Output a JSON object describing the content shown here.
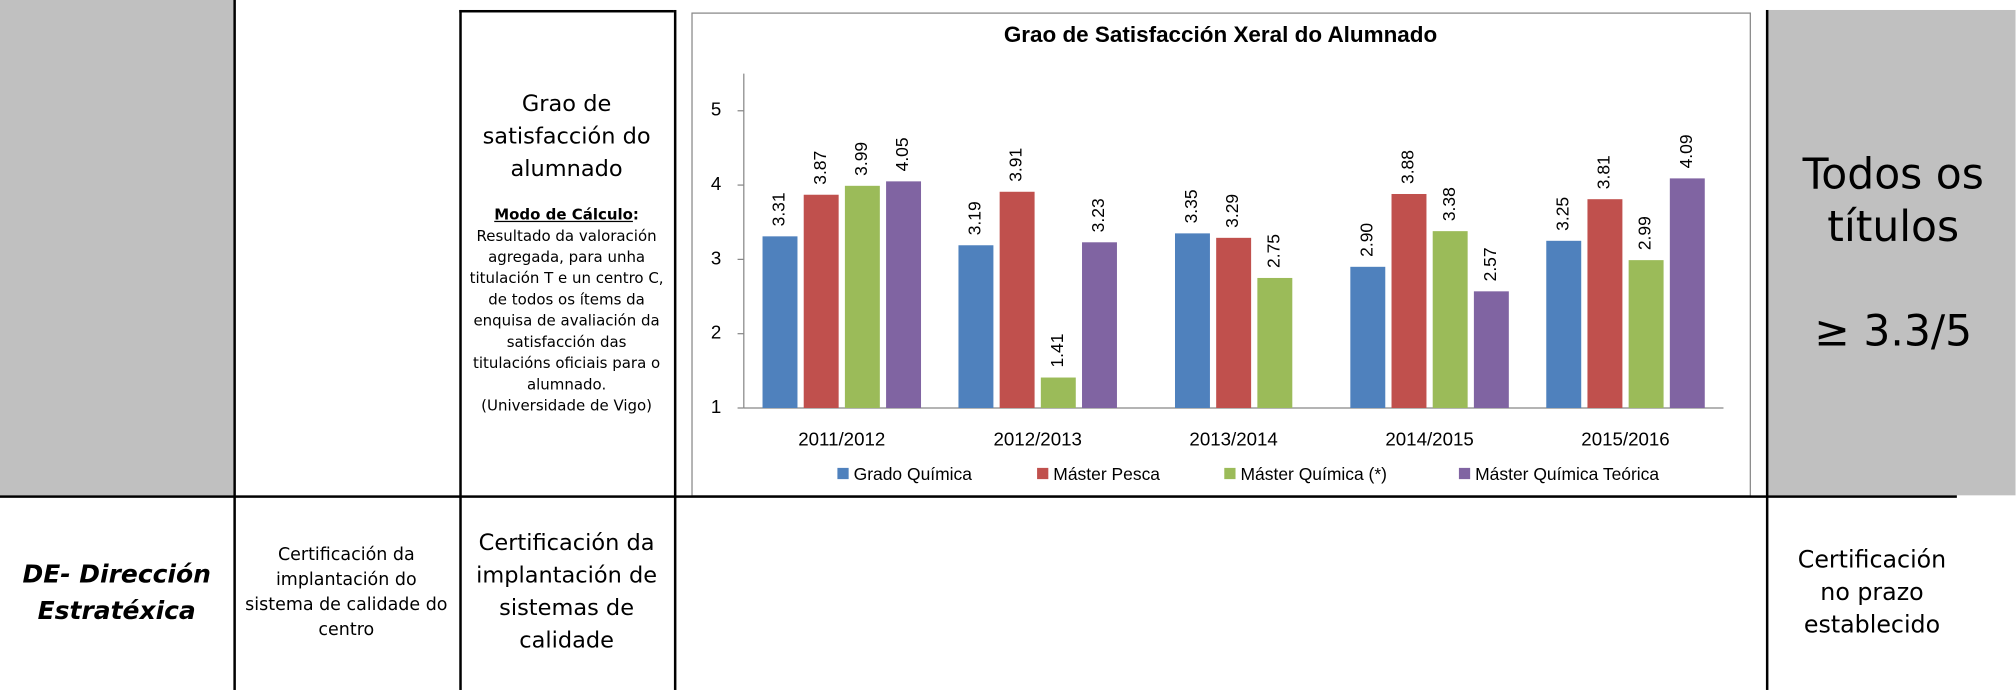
{
  "indicator": {
    "title": "Grao de satisfacción do alumnado",
    "method_label": "Modo de Cálculo",
    "method_colon": ":",
    "method_text": "Resultado da valoración agregada, para unha titulación T e un centro C, de todos os ítems da enquisa de avaliación da satisfacción das titulacións oficiais para  o alumnado.",
    "source": "(Universidade de Vigo)"
  },
  "target": {
    "scope": "Todos os títulos",
    "threshold": "≥ 3.3/5"
  },
  "row2": {
    "dimension": "DE- Dirección Estratéxica",
    "procedure": "Certificación da implantación do sistema de calidade do centro",
    "indicator": "Certificación da implantación de sistemas de calidade",
    "target": "Certificación no prazo establecido"
  },
  "chart_data": {
    "type": "bar",
    "title": "Grao de Satisfacción Xeral do Alumnado",
    "categories": [
      "2011/2012",
      "2012/2013",
      "2013/2014",
      "2014/2015",
      "2015/2016"
    ],
    "series": [
      {
        "name": "Grado Química",
        "color": "#4f81bd",
        "values": [
          3.31,
          3.19,
          3.35,
          2.9,
          3.25
        ],
        "value_labels": [
          "3.31",
          "3.19",
          "3.35",
          "2.90",
          "3.25"
        ]
      },
      {
        "name": "Máster Pesca",
        "color": "#c0504d",
        "values": [
          3.87,
          3.91,
          3.29,
          3.88,
          3.81
        ],
        "value_labels": [
          "3.87",
          "3.91",
          "3.29",
          "3.88",
          "3.81"
        ]
      },
      {
        "name": "Máster Química (*)",
        "color": "#9bbb59",
        "values": [
          3.99,
          1.41,
          2.75,
          3.38,
          2.99
        ],
        "value_labels": [
          "3.99",
          "1.41",
          "2.75",
          "3.38",
          "2.99"
        ]
      },
      {
        "name": "Máster Química Teórica",
        "color": "#8064a2",
        "values": [
          4.05,
          3.23,
          null,
          2.57,
          4.09
        ],
        "value_labels": [
          "4.05",
          "3.23",
          null,
          "2.57",
          "4.09"
        ]
      }
    ],
    "ylim": [
      1,
      5.5
    ],
    "yticks": [
      1,
      2,
      3,
      4,
      5
    ],
    "grid": false,
    "legend": "bottom"
  }
}
